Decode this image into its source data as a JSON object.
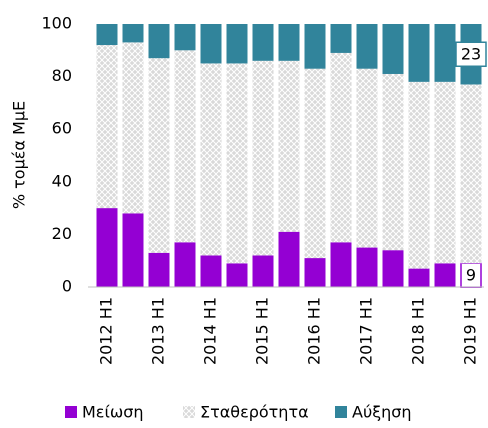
{
  "chart_data": {
    "type": "stacked_bar",
    "y_label": "% τομέα ΜμΕ",
    "categories": [
      "2012 H1",
      null,
      "2013 H1",
      null,
      "2014 H1",
      null,
      "2015 H1",
      null,
      "2016 H1",
      null,
      "2017 H1",
      null,
      "2018 H1",
      null,
      "2019 H1"
    ],
    "series": [
      {
        "name": "Μείωση",
        "color": "#9400d3",
        "values": [
          30,
          28,
          13,
          17,
          12,
          9,
          12,
          21,
          11,
          17,
          15,
          14,
          7,
          9,
          9
        ],
        "value_labels": [
          null,
          null,
          null,
          null,
          null,
          null,
          null,
          null,
          null,
          null,
          null,
          null,
          null,
          null,
          "9"
        ]
      },
      {
        "name": "Σταθερότητα",
        "color": "#d9d9d9",
        "hatch": true,
        "values": [
          62,
          65,
          74,
          73,
          73,
          76,
          74,
          65,
          72,
          72,
          68,
          67,
          71,
          69,
          68
        ]
      },
      {
        "name": "Αύξηση",
        "color": "#31849b",
        "values": [
          8,
          7,
          13,
          10,
          15,
          15,
          14,
          14,
          17,
          11,
          17,
          19,
          22,
          22,
          23
        ],
        "value_labels": [
          null,
          null,
          null,
          null,
          null,
          null,
          null,
          null,
          null,
          null,
          null,
          null,
          null,
          null,
          "23"
        ]
      }
    ],
    "ylim": [
      0,
      100
    ],
    "yticks": [
      0,
      20,
      40,
      60,
      80,
      100
    ],
    "grid": false
  }
}
